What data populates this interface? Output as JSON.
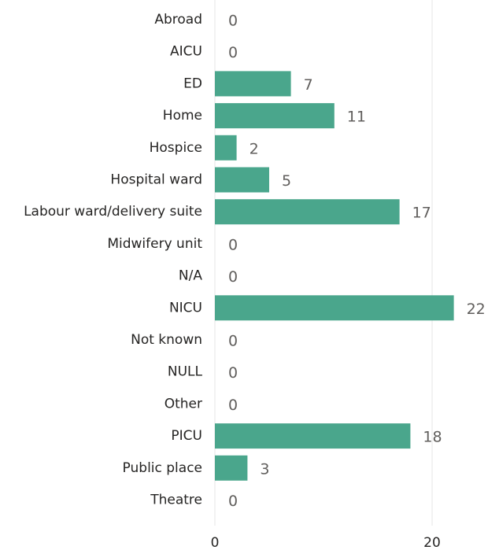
{
  "chart_data": {
    "type": "bar",
    "orientation": "horizontal",
    "categories": [
      "Abroad",
      "AICU",
      "ED",
      "Home",
      "Hospice",
      "Hospital ward",
      "Labour ward/delivery suite",
      "Midwifery unit",
      "N/A",
      "NICU",
      "Not known",
      "NULL",
      "Other",
      "PICU",
      "Public place",
      "Theatre"
    ],
    "values": [
      0,
      0,
      7,
      11,
      2,
      5,
      17,
      0,
      0,
      22,
      0,
      0,
      0,
      18,
      3,
      0
    ],
    "xlim": [
      0,
      25
    ],
    "xticks": [
      0,
      20
    ],
    "xtick_labels": [
      "0",
      "20"
    ],
    "grid": "vertical",
    "data_labels": true,
    "bar_color": "#4aa68c"
  }
}
